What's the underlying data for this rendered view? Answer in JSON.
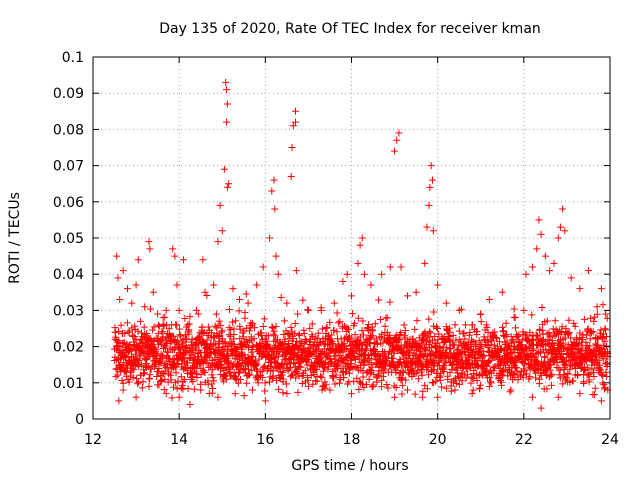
{
  "chart_data": {
    "type": "scatter",
    "title": "Day 135 of 2020, Rate Of TEC Index for receiver kman",
    "xlabel": "GPS time / hours",
    "ylabel": "ROTI / TECUs",
    "xlim": [
      12,
      24
    ],
    "ylim": [
      0,
      0.1
    ],
    "xticks": [
      12,
      14,
      16,
      18,
      20,
      22,
      24
    ],
    "xtick_labels": [
      "12",
      "14",
      "16",
      "18",
      "20",
      "22",
      "24"
    ],
    "yticks": [
      0,
      0.01,
      0.02,
      0.03,
      0.04,
      0.05,
      0.06,
      0.07,
      0.08,
      0.09,
      0.1
    ],
    "ytick_labels": [
      "0",
      "0.01",
      "0.02",
      "0.03",
      "0.04",
      "0.05",
      "0.06",
      "0.07",
      "0.08",
      "0.09",
      "0.1"
    ],
    "grid": true,
    "marker": "+",
    "marker_color": "#ff0000",
    "series": [
      {
        "points": [
          [
            12.55,
            0.045
          ],
          [
            12.58,
            0.039
          ],
          [
            12.62,
            0.033
          ],
          [
            12.7,
            0.041
          ],
          [
            12.8,
            0.036
          ],
          [
            12.9,
            0.032
          ],
          [
            13.0,
            0.037
          ],
          [
            13.05,
            0.044
          ],
          [
            13.2,
            0.031
          ],
          [
            13.3,
            0.049
          ],
          [
            13.32,
            0.047
          ],
          [
            13.4,
            0.035
          ],
          [
            13.5,
            0.029
          ],
          [
            13.7,
            0.03
          ],
          [
            13.85,
            0.047
          ],
          [
            13.9,
            0.045
          ],
          [
            13.95,
            0.037
          ],
          [
            14.0,
            0.03
          ],
          [
            14.1,
            0.044
          ],
          [
            14.2,
            0.026
          ],
          [
            14.4,
            0.03
          ],
          [
            14.55,
            0.044
          ],
          [
            14.6,
            0.035
          ],
          [
            14.8,
            0.037
          ],
          [
            14.9,
            0.049
          ],
          [
            14.95,
            0.059
          ],
          [
            15.0,
            0.052
          ],
          [
            15.05,
            0.069
          ],
          [
            15.08,
            0.093
          ],
          [
            15.1,
            0.091
          ],
          [
            15.12,
            0.087
          ],
          [
            15.1,
            0.082
          ],
          [
            15.12,
            0.064
          ],
          [
            15.15,
            0.065
          ],
          [
            15.25,
            0.036
          ],
          [
            15.4,
            0.033
          ],
          [
            15.6,
            0.032
          ],
          [
            15.8,
            0.037
          ],
          [
            15.95,
            0.042
          ],
          [
            16.1,
            0.05
          ],
          [
            16.15,
            0.063
          ],
          [
            16.2,
            0.066
          ],
          [
            16.22,
            0.058
          ],
          [
            16.25,
            0.045
          ],
          [
            16.3,
            0.04
          ],
          [
            16.5,
            0.032
          ],
          [
            16.6,
            0.067
          ],
          [
            16.62,
            0.075
          ],
          [
            16.65,
            0.081
          ],
          [
            16.7,
            0.085
          ],
          [
            16.7,
            0.082
          ],
          [
            16.72,
            0.041
          ],
          [
            16.75,
            0.029
          ],
          [
            17.0,
            0.03
          ],
          [
            17.3,
            0.03
          ],
          [
            17.6,
            0.032
          ],
          [
            17.8,
            0.038
          ],
          [
            17.9,
            0.04
          ],
          [
            18.0,
            0.034
          ],
          [
            18.15,
            0.043
          ],
          [
            18.2,
            0.048
          ],
          [
            18.25,
            0.05
          ],
          [
            18.3,
            0.04
          ],
          [
            18.45,
            0.037
          ],
          [
            18.7,
            0.04
          ],
          [
            18.9,
            0.042
          ],
          [
            19.0,
            0.074
          ],
          [
            19.05,
            0.077
          ],
          [
            19.1,
            0.079
          ],
          [
            19.15,
            0.042
          ],
          [
            19.3,
            0.034
          ],
          [
            19.5,
            0.035
          ],
          [
            19.7,
            0.043
          ],
          [
            19.75,
            0.053
          ],
          [
            19.8,
            0.059
          ],
          [
            19.82,
            0.064
          ],
          [
            19.85,
            0.07
          ],
          [
            19.88,
            0.066
          ],
          [
            19.9,
            0.052
          ],
          [
            20.0,
            0.037
          ],
          [
            20.2,
            0.032
          ],
          [
            20.5,
            0.03
          ],
          [
            20.8,
            0.026
          ],
          [
            21.0,
            0.029
          ],
          [
            21.2,
            0.033
          ],
          [
            21.5,
            0.035
          ],
          [
            21.8,
            0.028
          ],
          [
            22.0,
            0.03
          ],
          [
            22.05,
            0.04
          ],
          [
            22.2,
            0.042
          ],
          [
            22.3,
            0.047
          ],
          [
            22.35,
            0.055
          ],
          [
            22.4,
            0.051
          ],
          [
            22.5,
            0.045
          ],
          [
            22.6,
            0.041
          ],
          [
            22.7,
            0.043
          ],
          [
            22.8,
            0.05
          ],
          [
            22.85,
            0.053
          ],
          [
            22.9,
            0.058
          ],
          [
            22.95,
            0.052
          ],
          [
            23.1,
            0.039
          ],
          [
            23.3,
            0.036
          ],
          [
            23.5,
            0.041
          ],
          [
            23.7,
            0.031
          ],
          [
            23.8,
            0.036
          ],
          [
            23.9,
            0.029
          ],
          [
            12.6,
            0.005
          ],
          [
            12.7,
            0.008
          ],
          [
            13.0,
            0.006
          ],
          [
            13.3,
            0.009
          ],
          [
            13.7,
            0.007
          ],
          [
            14.0,
            0.006
          ],
          [
            14.25,
            0.004
          ],
          [
            14.5,
            0.008
          ],
          [
            14.9,
            0.006
          ],
          [
            15.3,
            0.007
          ],
          [
            15.7,
            0.008
          ],
          [
            16.0,
            0.005
          ],
          [
            16.5,
            0.007
          ],
          [
            17.0,
            0.009
          ],
          [
            17.5,
            0.008
          ],
          [
            18.0,
            0.007
          ],
          [
            18.5,
            0.009
          ],
          [
            19.0,
            0.006
          ],
          [
            19.3,
            0.008
          ],
          [
            19.65,
            0.006
          ],
          [
            20.0,
            0.006
          ],
          [
            20.4,
            0.008
          ],
          [
            20.8,
            0.007
          ],
          [
            21.2,
            0.009
          ],
          [
            21.7,
            0.008
          ],
          [
            22.2,
            0.006
          ],
          [
            22.4,
            0.003
          ],
          [
            22.8,
            0.006
          ],
          [
            23.3,
            0.007
          ],
          [
            23.8,
            0.005
          ],
          [
            23.95,
            0.008
          ]
        ]
      }
    ],
    "dense_band": {
      "x_start": 12.5,
      "x_end": 23.95,
      "step_hours": 0.0085,
      "typical_range": [
        0.005,
        0.03
      ],
      "center": 0.015
    }
  }
}
